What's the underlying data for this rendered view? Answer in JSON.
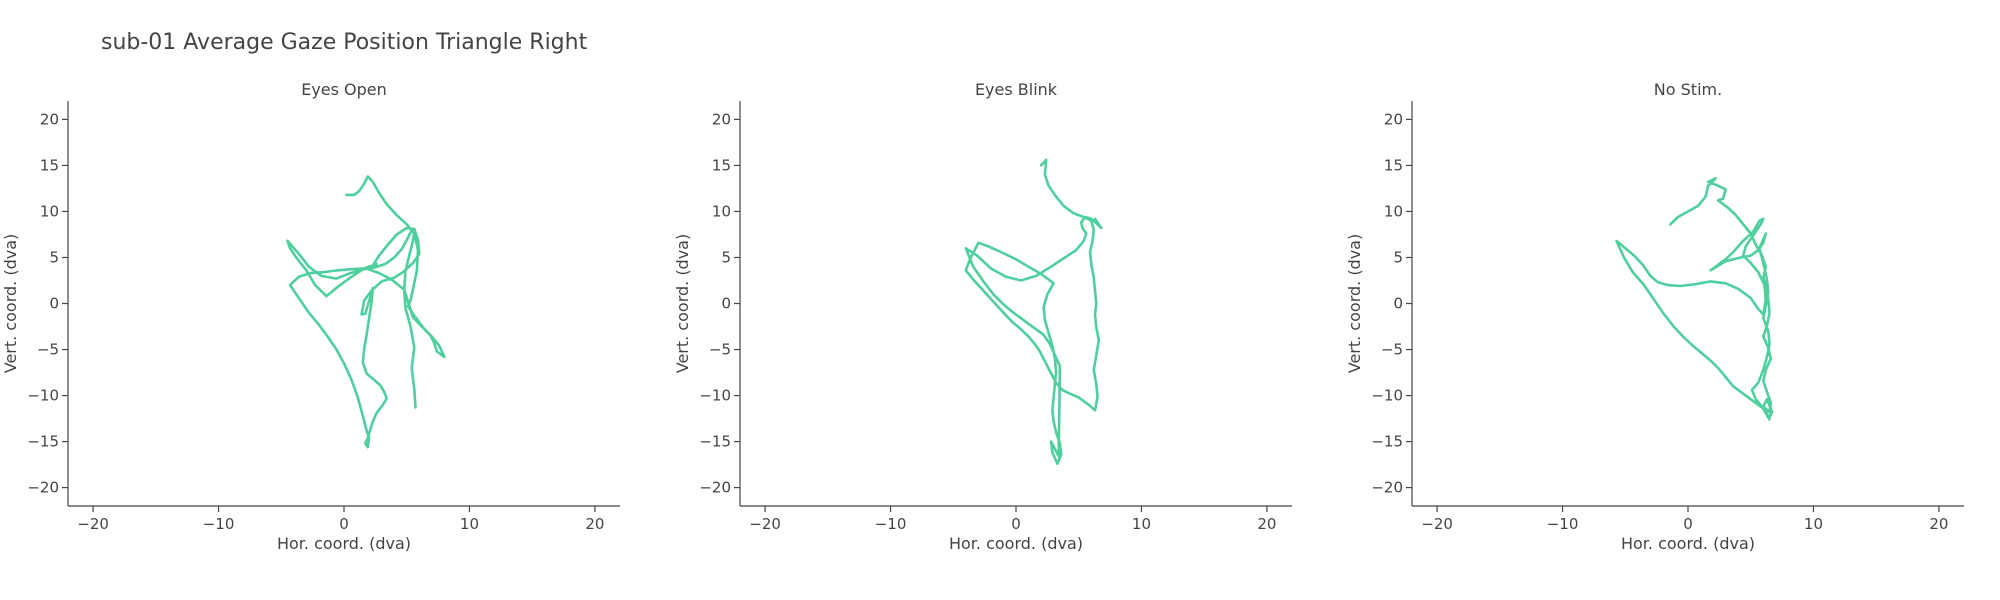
{
  "figure": {
    "title": "sub-01 Average Gaze Position Triangle Right"
  },
  "colors": {
    "trace": "#4fcf9d",
    "axis": "#444444"
  },
  "chart_data": [
    {
      "type": "line",
      "title": "Eyes Open",
      "xlabel": "Hor. coord. (dva)",
      "ylabel": "Vert. coord. (dva)",
      "xlim": [
        -22,
        22
      ],
      "ylim": [
        -22,
        22
      ],
      "xticks": [
        -20,
        -10,
        0,
        10,
        20
      ],
      "yticks": [
        -20,
        -15,
        -10,
        -5,
        0,
        5,
        10,
        15,
        20
      ],
      "grid": false,
      "series": [
        {
          "x": [
            0.2,
            0.8,
            1.2,
            1.6,
            1.9,
            2.3,
            2.8,
            3.4,
            4.2,
            5.0,
            5.6,
            5.9,
            5.8,
            5.5,
            5.3,
            5.1,
            5.7,
            6.3,
            7.0,
            7.6,
            8.0,
            7.4,
            7.2,
            6.9,
            6.2,
            5.5,
            5.2,
            4.8,
            3.8,
            2.8,
            1.8,
            0.5,
            -0.6,
            -1.8,
            -2.8,
            -3.6,
            -4.5,
            -4.3,
            -3.8,
            -3.0,
            -2.3,
            -1.4,
            -0.5,
            0.5,
            1.6,
            2.6,
            2.2,
            2.8,
            3.5,
            4.2,
            5.0,
            5.6,
            5.9,
            6.0,
            5.5,
            4.7,
            4.0,
            3.0,
            2.2,
            1.6,
            1.4,
            1.7,
            2.1,
            2.3,
            2.2,
            2.0,
            1.8,
            1.6,
            1.5,
            1.8,
            2.4,
            2.9,
            3.2,
            3.4,
            3.1,
            2.6,
            2.3,
            2.1,
            1.9,
            1.7,
            1.9,
            2.0,
            1.8,
            1.5,
            1.1,
            0.6,
            0.0,
            -0.6,
            -1.3,
            -2.0,
            -2.8,
            -3.6,
            -4.3,
            -3.6,
            -2.7,
            -1.6,
            -0.6,
            0.4,
            1.4,
            2.4,
            3.3,
            4.0,
            4.6,
            5.0,
            5.3,
            5.5,
            5.6,
            5.5,
            5.2,
            4.9,
            4.8,
            4.9,
            5.3,
            5.6,
            5.4,
            5.6,
            5.7
          ],
          "y": [
            11.8,
            11.8,
            12.2,
            13.0,
            13.8,
            13.2,
            12.0,
            10.8,
            9.6,
            8.6,
            7.6,
            5.8,
            3.5,
            1.6,
            0.3,
            -0.3,
            -1.5,
            -2.6,
            -3.6,
            -4.6,
            -5.8,
            -5.2,
            -4.3,
            -3.5,
            -2.5,
            -1.5,
            -0.2,
            1.5,
            2.6,
            3.3,
            3.8,
            3.3,
            2.7,
            3.0,
            4.0,
            5.4,
            6.8,
            6.0,
            5.0,
            3.6,
            2.0,
            0.8,
            1.8,
            2.8,
            3.8,
            4.3,
            3.9,
            5.2,
            6.4,
            7.5,
            8.2,
            8.1,
            6.9,
            5.4,
            4.4,
            3.4,
            2.8,
            2.4,
            1.4,
            0.3,
            -1.2,
            -1.1,
            0.7,
            1.7,
            0.2,
            -1.6,
            -3.4,
            -5.0,
            -6.4,
            -7.6,
            -8.3,
            -8.9,
            -9.6,
            -10.3,
            -11.0,
            -11.9,
            -12.8,
            -13.7,
            -14.6,
            -15.2,
            -15.6,
            -14.6,
            -13.8,
            -12.2,
            -10.2,
            -8.3,
            -6.5,
            -5.0,
            -3.6,
            -2.3,
            -1.0,
            0.6,
            2.0,
            2.9,
            3.3,
            3.4,
            3.6,
            3.7,
            3.8,
            3.9,
            4.3,
            5.0,
            5.9,
            6.9,
            7.7,
            8.1,
            8.0,
            6.8,
            5.2,
            3.5,
            1.5,
            -0.5,
            -2.5,
            -4.8,
            -7.0,
            -9.3,
            -11.3
          ]
        }
      ]
    },
    {
      "type": "line",
      "title": "Eyes Blink",
      "xlabel": "Hor. coord. (dva)",
      "ylabel": "Vert. coord. (dva)",
      "xlim": [
        -22,
        22
      ],
      "ylim": [
        -22,
        22
      ],
      "xticks": [
        -20,
        -10,
        0,
        10,
        20
      ],
      "yticks": [
        -20,
        -15,
        -10,
        -5,
        0,
        5,
        10,
        15,
        20
      ],
      "grid": false,
      "series": [
        {
          "x": [
            2.0,
            2.4,
            2.3,
            2.6,
            3.2,
            3.8,
            4.6,
            5.4,
            6.0,
            6.2,
            6.1,
            5.9,
            6.0,
            6.2,
            6.3,
            6.4,
            6.3,
            6.4,
            6.6,
            6.4,
            6.2,
            6.4,
            6.5,
            6.3,
            5.8,
            5.0,
            4.3,
            3.7,
            3.2,
            2.8,
            2.5,
            2.2,
            1.9,
            1.5,
            1.0,
            0.4,
            -0.3,
            -1.0,
            -1.8,
            -2.6,
            -3.4,
            -4.0,
            -3.6,
            -3.0,
            -2.2,
            -1.2,
            0.0,
            1.0,
            2.0,
            2.6,
            3.0,
            2.5,
            2.2,
            2.3,
            2.6,
            2.9,
            3.1,
            3.2,
            3.1,
            3.0,
            2.9,
            3.0,
            3.2,
            3.5,
            3.6,
            3.3,
            2.9,
            2.8,
            3.1,
            3.4,
            3.5,
            3.1,
            2.7,
            2.2,
            1.6,
            1.0,
            0.4,
            -0.3,
            -1.0,
            -1.8,
            -2.6,
            -3.4,
            -4.0,
            -3.1,
            -2.0,
            -0.8,
            0.4,
            1.6,
            2.8,
            3.9,
            4.8,
            5.4,
            5.6,
            5.5,
            5.3,
            5.2,
            5.5,
            6.0,
            6.5,
            6.8,
            6.6,
            6.3
          ],
          "y": [
            15.0,
            15.6,
            14.0,
            12.8,
            11.6,
            10.6,
            9.8,
            9.4,
            9.0,
            8.0,
            6.8,
            5.6,
            4.2,
            2.8,
            1.4,
            0.0,
            -1.2,
            -2.6,
            -4.0,
            -5.6,
            -7.2,
            -8.8,
            -10.2,
            -11.6,
            -11.0,
            -10.2,
            -9.8,
            -9.4,
            -8.6,
            -7.6,
            -6.8,
            -6.0,
            -5.2,
            -4.4,
            -3.6,
            -2.8,
            -2.0,
            -1.0,
            0.2,
            1.4,
            2.6,
            3.6,
            5.0,
            6.6,
            6.2,
            5.6,
            4.8,
            4.0,
            3.2,
            2.6,
            2.2,
            1.0,
            -0.4,
            -1.8,
            -3.2,
            -4.6,
            -6.0,
            -7.4,
            -8.8,
            -10.2,
            -11.6,
            -12.8,
            -14.0,
            -15.2,
            -16.4,
            -17.4,
            -16.2,
            -15.0,
            -15.8,
            -16.6,
            -6.8,
            -5.6,
            -4.4,
            -3.4,
            -2.8,
            -2.2,
            -1.6,
            -0.9,
            -0.1,
            1.0,
            2.4,
            4.0,
            6.0,
            5.2,
            3.8,
            2.9,
            2.5,
            3.0,
            4.0,
            5.0,
            5.8,
            6.8,
            7.6,
            7.8,
            8.2,
            8.8,
            9.4,
            9.2,
            8.6,
            8.2,
            8.6,
            9.2
          ]
        }
      ]
    },
    {
      "type": "line",
      "title": "No Stim.",
      "xlabel": "Hor. coord. (dva)",
      "ylabel": "Vert. coord. (dva)",
      "xlim": [
        -22,
        22
      ],
      "ylim": [
        -22,
        22
      ],
      "xticks": [
        -20,
        -10,
        0,
        10,
        20
      ],
      "yticks": [
        -20,
        -15,
        -10,
        -5,
        0,
        5,
        10,
        15,
        20
      ],
      "grid": false,
      "series": [
        {
          "x": [
            -1.4,
            -0.8,
            0.0,
            0.8,
            1.4,
            1.6,
            2.2,
            1.6,
            2.4,
            3.0,
            2.8,
            2.4,
            3.2,
            3.8,
            4.4,
            5.0,
            5.4,
            5.9,
            6.2,
            6.0,
            6.3,
            6.4,
            6.5,
            6.3,
            6.0,
            6.4,
            6.6,
            6.2,
            6.0,
            6.3,
            6.6,
            6.5,
            6.0,
            6.3,
            6.7,
            6.5,
            6.0,
            5.2,
            4.4,
            3.6,
            3.0,
            2.4,
            1.8,
            1.1,
            0.4,
            -0.4,
            -1.2,
            -2.0,
            -2.8,
            -3.5,
            -4.4,
            -5.1,
            -5.7,
            -5.0,
            -4.3,
            -3.6,
            -3.0,
            -2.4,
            -1.6,
            -0.6,
            0.6,
            1.8,
            3.0,
            4.0,
            5.0,
            5.6,
            6.0,
            6.2,
            6.1,
            5.6,
            5.0,
            4.4,
            4.6,
            5.2,
            5.8,
            6.0,
            5.7,
            5.2,
            4.4,
            3.6,
            3.0,
            2.4,
            1.8,
            3.0,
            4.2,
            5.0,
            5.6,
            6.0,
            6.2,
            5.7,
            6.0,
            6.3,
            6.4,
            6.2,
            6.0,
            6.4,
            6.5,
            6.3,
            6.0,
            5.6,
            5.1,
            5.4,
            5.9,
            6.5
          ],
          "y": [
            8.6,
            9.4,
            10.0,
            10.6,
            11.6,
            12.8,
            13.6,
            13.2,
            12.8,
            12.4,
            11.4,
            11.2,
            10.4,
            9.6,
            8.6,
            7.6,
            6.4,
            5.2,
            4.0,
            2.8,
            1.6,
            0.4,
            -1.0,
            -2.4,
            -3.6,
            -4.8,
            -6.0,
            -7.2,
            -8.4,
            -9.6,
            -10.8,
            -11.8,
            -11.2,
            -10.4,
            -11.8,
            -12.4,
            -11.4,
            -10.6,
            -9.8,
            -9.0,
            -8.0,
            -7.0,
            -6.2,
            -5.4,
            -4.6,
            -3.6,
            -2.4,
            -1.0,
            0.6,
            2.0,
            3.4,
            5.0,
            6.8,
            6.0,
            5.2,
            4.2,
            3.0,
            2.3,
            2.0,
            1.9,
            2.1,
            2.4,
            2.2,
            1.6,
            0.6,
            -0.6,
            -1.2,
            0.4,
            2.0,
            3.4,
            4.4,
            5.2,
            6.2,
            7.4,
            8.6,
            9.2,
            9.0,
            7.8,
            6.8,
            5.6,
            4.8,
            4.2,
            3.6,
            4.6,
            5.0,
            5.2,
            5.8,
            6.6,
            7.6,
            6.0,
            4.4,
            2.6,
            1.2,
            -0.2,
            -1.6,
            -3.0,
            -4.4,
            -5.8,
            -7.2,
            -8.6,
            -9.4,
            -10.4,
            -11.2,
            -12.6
          ]
        }
      ]
    }
  ]
}
